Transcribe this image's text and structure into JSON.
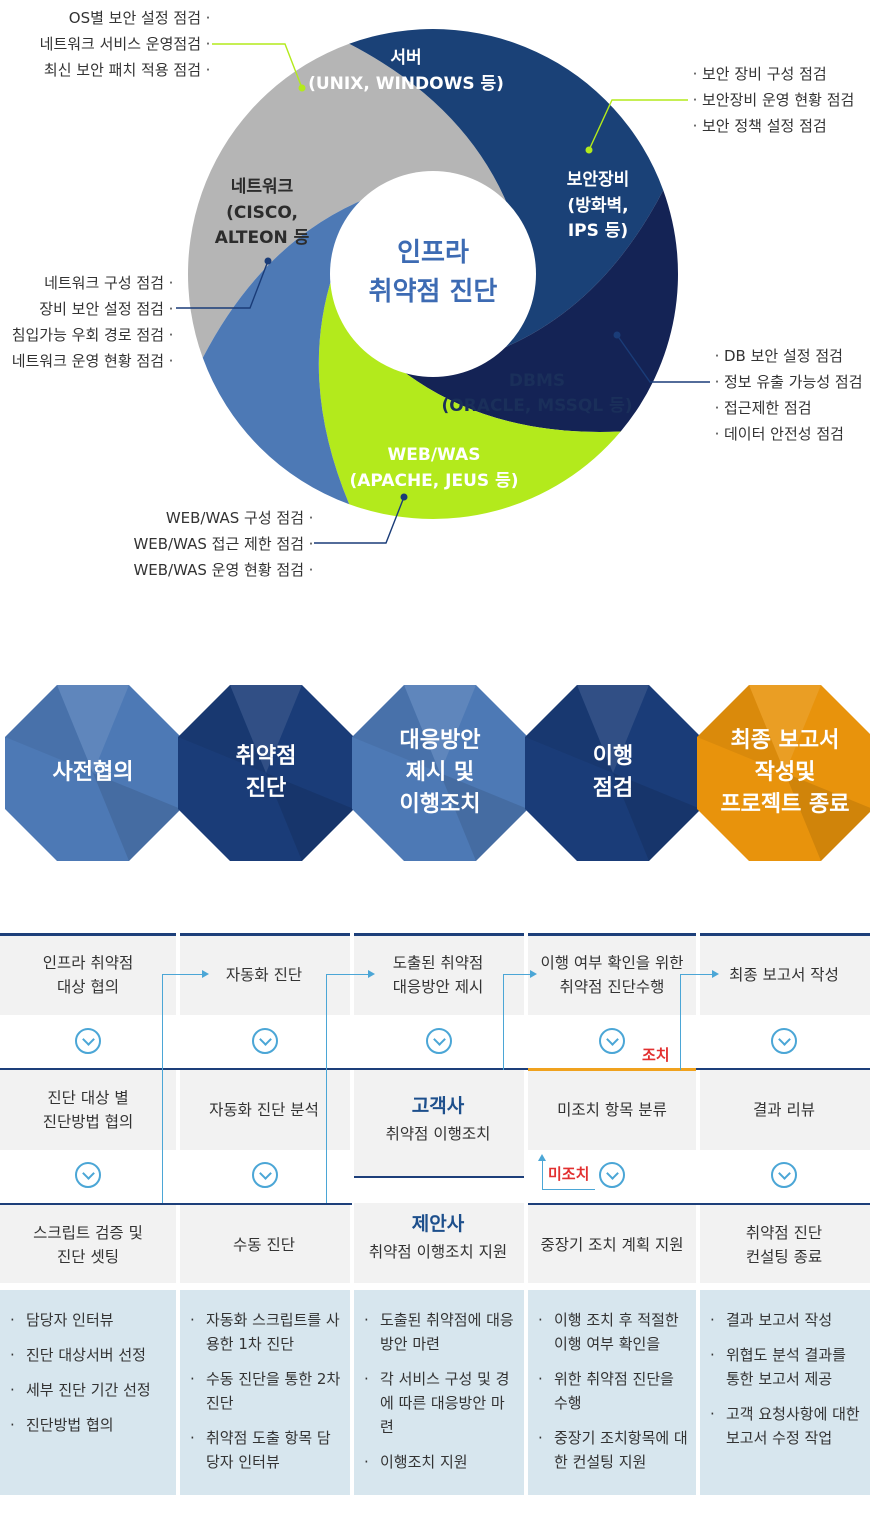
{
  "donut": {
    "center": [
      "인프라",
      "취약점 진단"
    ],
    "segments": [
      {
        "id": "server",
        "label": [
          "서버",
          "(UNIX, WINDOWS 등)"
        ],
        "color": "#1a4177"
      },
      {
        "id": "security",
        "label": [
          "보안장비",
          "(방화벽,",
          "IPS 등)"
        ],
        "color": "#142355"
      },
      {
        "id": "dbms",
        "label": [
          "DBMS",
          "(ORACLE, MSSQL 등)"
        ],
        "color": "#b3ea1c"
      },
      {
        "id": "web",
        "label": [
          "WEB/WAS",
          "(APACHE, JEUS 등)"
        ],
        "color": "#4d79b5"
      },
      {
        "id": "network",
        "label": [
          "네트워크",
          "(CISCO,",
          "ALTEON 등"
        ],
        "color": "#b5b5b5"
      }
    ],
    "callouts": {
      "server": [
        "OS별 보안 설정 점검",
        "네트워크 서비스 운영점검",
        "최신 보안 패치 적용 점검"
      ],
      "security": [
        "보안 장비 구성 점검",
        "보안장비 운영 현황 점검",
        "보안 정책 설정 점검"
      ],
      "network": [
        "네트워크 구성 점검",
        "장비 보안 설정 점검",
        "침입가능 우회 경로 점검",
        "네트워크 운영 현황 점검"
      ],
      "dbms": [
        "DB 보안 설정 점검",
        "정보 유출 가능성 점검",
        "접근제한 점검",
        "데이터 안전성 점검"
      ],
      "web": [
        "WEB/WAS 구성 점검",
        "WEB/WAS 접근 제한 점검",
        "WEB/WAS 운영 현황 점검"
      ]
    }
  },
  "stages": [
    {
      "label": "사전협의",
      "color": "#4d79b5"
    },
    {
      "label": "취약점\n진단",
      "color": "#1a3c78"
    },
    {
      "label": "대응방안\n제시 및\n이행조치",
      "color": "#4d79b5"
    },
    {
      "label": "이행\n점검",
      "color": "#1a3c78"
    },
    {
      "label": "최종 보고서\n작성및\n프로젝트 종료",
      "color": "#e8930c"
    }
  ],
  "columns": [
    {
      "steps": [
        "인프라 취약점\n대상 협의",
        "진단 대상 별\n진단방법 협의",
        "스크립트 검증 및\n진단 셋팅"
      ],
      "details": [
        "담당자 인터뷰",
        "진단 대상서버 선정",
        "세부 진단 기간 선정",
        "진단방법 협의"
      ]
    },
    {
      "steps": [
        "자동화 진단",
        "자동화 진단 분석",
        "수동 진단"
      ],
      "details": [
        "자동화 스크립트를 사용한 1차 진단",
        "수동 진단을 통한 2차 진단",
        "취약점 도출 항목 담당자 인터뷰"
      ]
    },
    {
      "steps": [
        "도출된 취약점\n대응방안 제시"
      ],
      "client": {
        "title": "고객사",
        "sub": "취약점 이행조치"
      },
      "proposer": {
        "title": "제안사",
        "sub": "취약점 이행조치 지원"
      },
      "details": [
        "도출된 취약점에 대응방안 마련",
        "각 서비스 구성 및 경에 따른 대응방안 마련",
        "이행조치 지원"
      ]
    },
    {
      "steps": [
        "이행 여부 확인을 위한\n취약점 진단수행",
        "미조치 항목 분류",
        "중장기 조치 계획 지원"
      ],
      "details": [
        "이행 조치 후 적절한 이행 여부 확인을",
        "위한 취약점 진단을 수행",
        "중장기 조치항목에 대한 컨설팅 지원"
      ]
    },
    {
      "steps": [
        "최종 보고서 작성",
        "결과 리뷰",
        "취약점 진단\n컨설팅 종료"
      ],
      "details": [
        "결과 보고서 작성",
        "위협도 분석 결과를 통한 보고서 제공",
        "고객 요청사항에 대한 보고서 수정 작업"
      ]
    }
  ],
  "flow_labels": {
    "action": "조치",
    "no_action": "미조치"
  }
}
